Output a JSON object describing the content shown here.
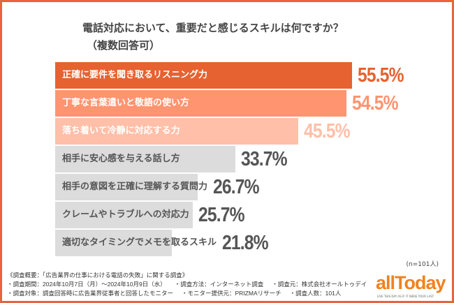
{
  "chart_data": {
    "type": "bar",
    "orientation": "horizontal",
    "title": "電話対応において、重要だと感じるスキルは何ですか？",
    "subtitle": "（複数回答可）",
    "categories": [
      "正確に要件を聞き取るリスニング力",
      "丁寧な言葉遣いと敬語の使い方",
      "落ち着いて冷静に対応する力",
      "相手に安心感を与える話し方",
      "相手の意図を正確に理解する質問力",
      "クレームやトラブルへの対応力",
      "適切なタイミングでメモを取るスキル"
    ],
    "values": [
      55.5,
      54.5,
      45.5,
      33.7,
      26.7,
      25.7,
      21.8
    ],
    "value_labels": [
      "55.5%",
      "54.5%",
      "45.5%",
      "33.7%",
      "26.7%",
      "25.7%",
      "21.8%"
    ],
    "unit": "%",
    "bar_colors": [
      "#e66231",
      "#ff9470",
      "#ffbfa8",
      "#dcdcdc",
      "#dcdcdc",
      "#dcdcdc",
      "#dcdcdc"
    ],
    "label_colors": [
      "#ffffff",
      "#ffffff",
      "#ffffff",
      "#555555",
      "#555555",
      "#555555",
      "#555555"
    ],
    "value_colors": [
      "#e66231",
      "#ff9470",
      "#ffbfa8",
      "#555555",
      "#555555",
      "#555555",
      "#555555"
    ],
    "grid": false
  },
  "note": "(n=101人)",
  "footer": {
    "heading": "《調査概要：「広告業界の仕事における電話の失敗」に関する調査》",
    "items": [
      "・調査期間：2024年10月7日（月）～2024年10月9日（水）",
      "・調査方法：インターネット調査",
      "・調査元：株式会社オールトゥデイ",
      "・調査対象：調査回答時に広告業界従事者と回答したモニター",
      "・モニター提供元：PRIZMAリサーチ",
      "・調査人数：101人"
    ]
  },
  "logo": {
    "text": "allToday",
    "tagline": "LIVE THIS DAY AS IF IT WERE YOUR LAST",
    "color": "#f0821e"
  },
  "frame_color": "#e8643a"
}
